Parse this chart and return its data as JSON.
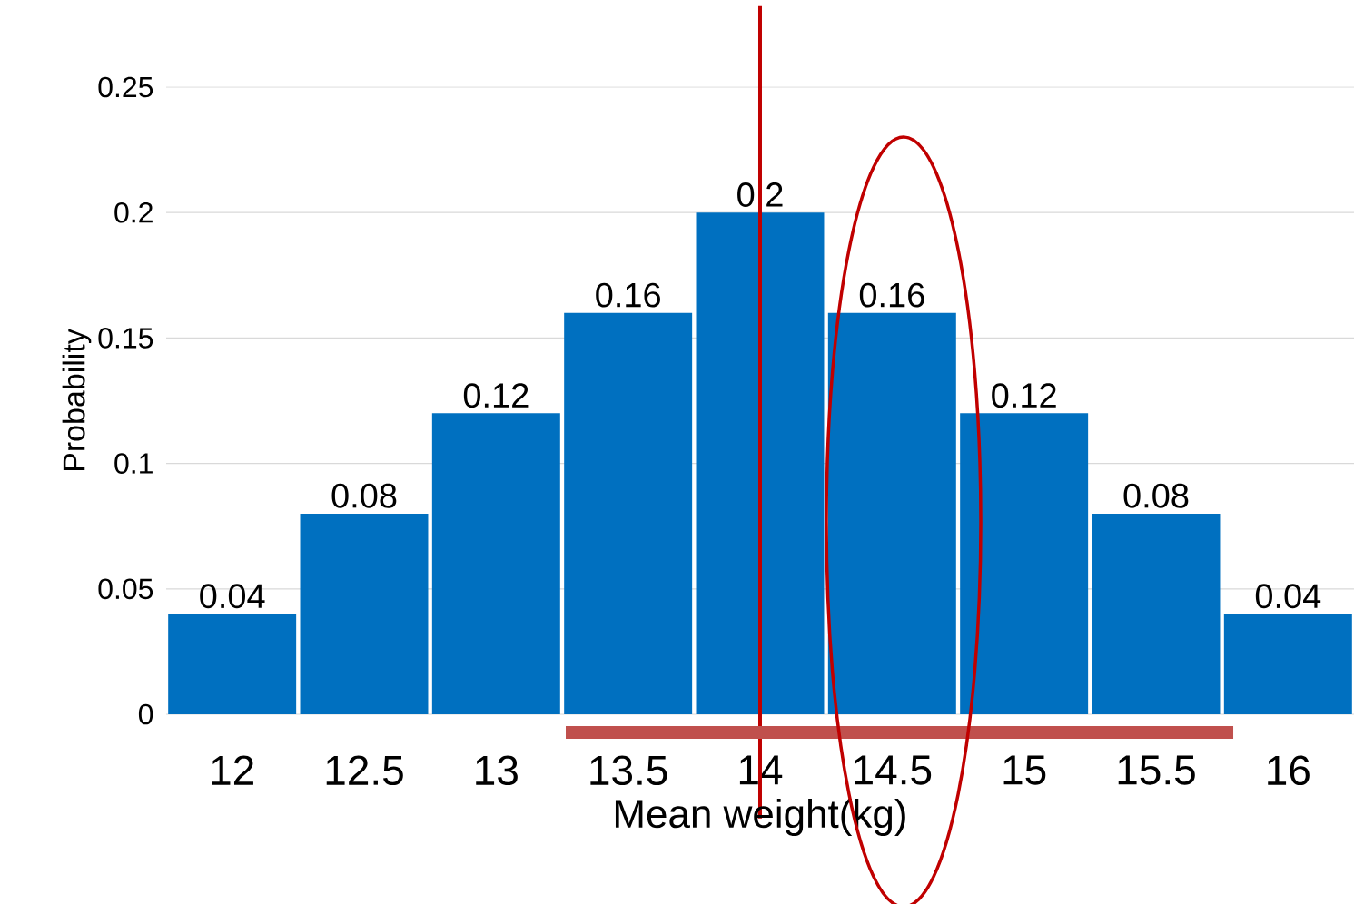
{
  "chart_data": {
    "type": "bar",
    "xlabel": "Mean weight(kg)",
    "ylabel": "Probability",
    "x": [
      12,
      12.5,
      13,
      13.5,
      14,
      14.5,
      15,
      15.5,
      16
    ],
    "values": [
      0.04,
      0.08,
      0.12,
      0.16,
      0.2,
      0.16,
      0.12,
      0.08,
      0.04
    ],
    "color": "#0070c0",
    "data_labels": true,
    "xlim": [
      11.75,
      16.25
    ],
    "xticks": [
      12,
      12.5,
      13,
      13.5,
      14,
      14.5,
      15,
      15.5,
      16
    ],
    "ylim": [
      0,
      0.25
    ],
    "yticks": [
      0,
      0.05,
      0.1,
      0.15,
      0.2,
      0.25
    ],
    "grid": "y",
    "ref_lines": [
      {
        "axis": "x",
        "value": 14,
        "color": "#c00000"
      }
    ]
  }
}
